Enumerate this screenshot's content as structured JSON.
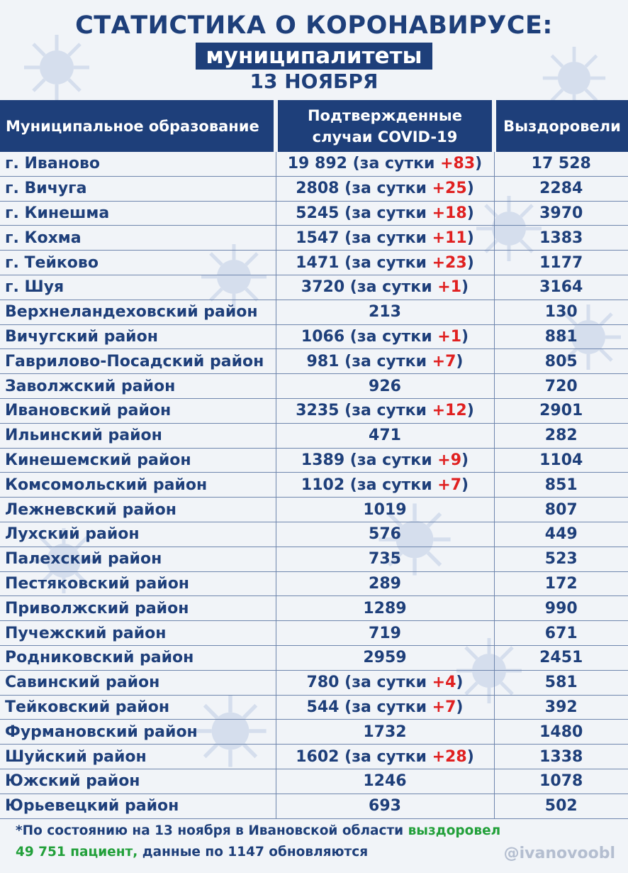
{
  "header": {
    "title": "СТАТИСТИКА О КОРОНАВИРУСЕ:",
    "subtitle": "муниципалитеты",
    "date": "13 НОЯБРЯ"
  },
  "table": {
    "columns": [
      "Муниципальное образование",
      "Подтвержденные случаи COVID-19",
      "Выздоровели"
    ],
    "rows": [
      {
        "name": "г. Иваново",
        "cases": "19 892",
        "daily": "+83",
        "recovered": "17 528"
      },
      {
        "name": "г. Вичуга",
        "cases": "2808",
        "daily": "+25",
        "recovered": "2284"
      },
      {
        "name": "г. Кинешма",
        "cases": "5245",
        "daily": "+18",
        "recovered": "3970"
      },
      {
        "name": "г. Кохма",
        "cases": "1547",
        "daily": "+11",
        "recovered": "1383"
      },
      {
        "name": "г. Тейково",
        "cases": "1471",
        "daily": "+23",
        "recovered": "1177"
      },
      {
        "name": "г. Шуя",
        "cases": "3720",
        "daily": "+1",
        "recovered": "3164"
      },
      {
        "name": "Верхнеландеховский район",
        "cases": "213",
        "daily": "",
        "recovered": "130"
      },
      {
        "name": "Вичугский район",
        "cases": "1066",
        "daily": "+1",
        "recovered": "881"
      },
      {
        "name": "Гаврилово-Посадский район",
        "cases": "981",
        "daily": "+7",
        "recovered": "805"
      },
      {
        "name": "Заволжский район",
        "cases": "926",
        "daily": "",
        "recovered": "720"
      },
      {
        "name": "Ивановский район",
        "cases": "3235",
        "daily": "+12",
        "recovered": "2901"
      },
      {
        "name": "Ильинский район",
        "cases": "471",
        "daily": "",
        "recovered": "282"
      },
      {
        "name": "Кинешемский район",
        "cases": "1389",
        "daily": "+9",
        "recovered": "1104"
      },
      {
        "name": "Комсомольский район",
        "cases": "1102",
        "daily": "+7",
        "recovered": "851"
      },
      {
        "name": "Лежневский район",
        "cases": "1019",
        "daily": "",
        "recovered": "807"
      },
      {
        "name": "Лухский район",
        "cases": "576",
        "daily": "",
        "recovered": "449"
      },
      {
        "name": "Палехский район",
        "cases": "735",
        "daily": "",
        "recovered": "523"
      },
      {
        "name": "Пестяковский район",
        "cases": "289",
        "daily": "",
        "recovered": "172"
      },
      {
        "name": "Приволжский район",
        "cases": "1289",
        "daily": "",
        "recovered": "990"
      },
      {
        "name": "Пучежский район",
        "cases": "719",
        "daily": "",
        "recovered": "671"
      },
      {
        "name": "Родниковский район",
        "cases": "2959",
        "daily": "",
        "recovered": "2451"
      },
      {
        "name": "Савинский район",
        "cases": "780",
        "daily": "+4",
        "recovered": "581"
      },
      {
        "name": "Тейковский район",
        "cases": "544",
        "daily": "+7",
        "recovered": "392"
      },
      {
        "name": "Фурмановский район",
        "cases": "1732",
        "daily": "",
        "recovered": "1480"
      },
      {
        "name": "Шуйский район",
        "cases": "1602",
        "daily": "+28",
        "recovered": "1338"
      },
      {
        "name": "Южский район",
        "cases": "1246",
        "daily": "",
        "recovered": "1078"
      },
      {
        "name": "Юрьевецкий район",
        "cases": "693",
        "daily": "",
        "recovered": "502"
      }
    ],
    "daily_prefix": "(за сутки ",
    "daily_suffix": ")"
  },
  "footer": {
    "part1": "*По состоянию на 13 ноября в Ивановской области ",
    "part2": "выздоровел",
    "part3": "49 751 пациент,",
    "part4": " данные по 1147 обновляются"
  },
  "handle": "@ivanovoobl",
  "colors": {
    "primary": "#1e3f7a",
    "increase": "#e02020",
    "recovered_highlight": "#22a03a",
    "background": "#f1f4f8"
  },
  "icons": [
    "virus-icon"
  ]
}
